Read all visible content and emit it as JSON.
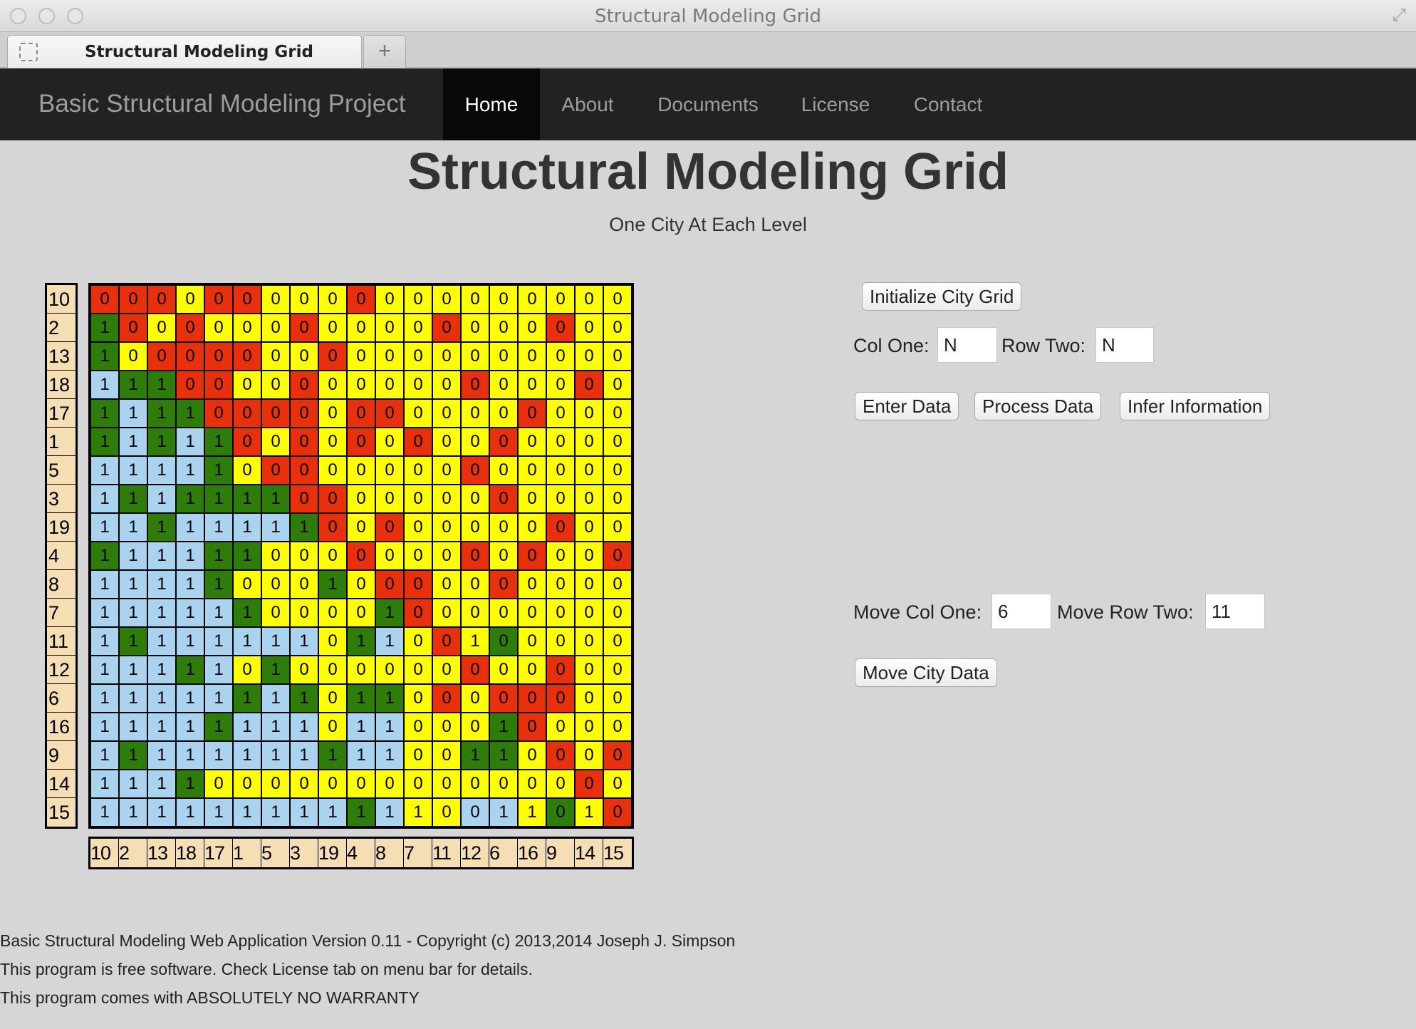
{
  "window": {
    "title": "Structural Modeling Grid"
  },
  "tab": {
    "label": "Structural Modeling Grid",
    "new_tab_symbol": "+"
  },
  "navbar": {
    "brand": "Basic Structural Modeling Project",
    "items": [
      {
        "label": "Home",
        "active": true
      },
      {
        "label": "About",
        "active": false
      },
      {
        "label": "Documents",
        "active": false
      },
      {
        "label": "License",
        "active": false
      },
      {
        "label": "Contact",
        "active": false
      }
    ]
  },
  "page": {
    "title": "Structural Modeling Grid",
    "subtitle": "One City At Each Level"
  },
  "grid": {
    "row_labels": [
      "10",
      "2",
      "13",
      "18",
      "17",
      "1",
      "5",
      "3",
      "19",
      "4",
      "8",
      "7",
      "11",
      "12",
      "6",
      "16",
      "9",
      "14",
      "15"
    ],
    "col_labels": [
      "10",
      "2",
      "13",
      "18",
      "17",
      "1",
      "5",
      "3",
      "19",
      "4",
      "8",
      "7",
      "11",
      "12",
      "6",
      "16",
      "9",
      "14",
      "15"
    ],
    "color_key": {
      "R": "#e8300c",
      "Y": "#ffff00",
      "G": "#2e7d0b",
      "B": "#a9d3ee"
    },
    "rows": [
      "RRRYRRYYYRYYYYYYYYY",
      "GRYRYYYRYYYYRYYYRYY",
      "GYRRRRYYRYYYYYYYYYY",
      "BGGRRYYRYYYYYRYYYRY",
      "GBGGRRRRYRRYYYYRYYY",
      "GBGBGRYRYRYRYYRYYYY",
      "BBBBGYRRYYYYYRYYYYY",
      "BGBGGGGRRYYYYYRYYYY",
      "BBGBBBBGRYRYYYYYRYY",
      "GBBBGGYYYRYYYRYRYYR",
      "BBBBGYYYGYRRYYRYYYY",
      "BBBBBGYYYYGRYYYYYYY",
      "BGBBBBBBYGBYRYGYYYY",
      "BBBGBYGYYYYYYRYYRYY",
      "BBBBBGBGYGGYRYRRRYY",
      "BBBBGBBBYBBYYYGRYYY",
      "BGBBBBBBGBBYYGGYRYR",
      "BBBGYYYYYYYYYYYYYRY",
      "BBBBBBBBBGBYYBBYGYR"
    ],
    "values": [
      "0000000000000000000",
      "1000000000000000000",
      "1000000000000000000",
      "1110000000000000000",
      "1111000000000000000",
      "1111100000000000000",
      "1111100000000000000",
      "1111111000000000000",
      "1111111100000000000",
      "1111110000000000000",
      "1111100010000000000",
      "1111110000100000000",
      "1111111101100100000",
      "1111101000000000000",
      "1111111101100000000",
      "1111111101100010000",
      "1111111111100110000",
      "1111000000000000000",
      "1111111111110011010"
    ]
  },
  "controls": {
    "init_button": "Initialize City Grid",
    "col_one_label": "Col One:",
    "col_one_value": "N",
    "row_two_label": "Row Two:",
    "row_two_value": "N",
    "enter_button": "Enter Data",
    "process_button": "Process Data",
    "infer_button": "Infer Information",
    "move_col_label": "Move Col One:",
    "move_col_value": "6",
    "move_row_label": "Move Row Two:",
    "move_row_value": "11",
    "move_button": "Move City Data"
  },
  "footer": {
    "line1": "Basic Structural Modeling Web Application Version 0.11 - Copyright (c) 2013,2014 Joseph J. Simpson",
    "line2": "This program is free software. Check License tab on menu bar for details.",
    "line3": "This program comes with ABSOLUTELY NO WARRANTY"
  }
}
